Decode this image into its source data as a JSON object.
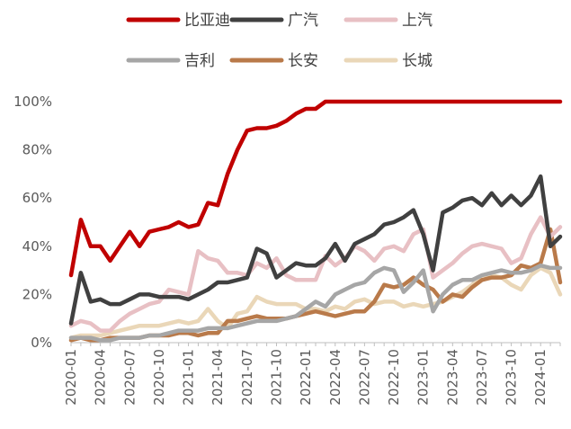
{
  "chart_data": {
    "type": "line",
    "title": "",
    "xlabel": "",
    "ylabel": "",
    "ylim": [
      0,
      100
    ],
    "y_ticks": [
      0,
      20,
      40,
      60,
      80,
      100
    ],
    "y_tick_labels": [
      "0%",
      "20%",
      "40%",
      "60%",
      "80%",
      "100%"
    ],
    "grid": false,
    "legend_position": "top",
    "x_tick_labels": [
      "2020-01",
      "2020-04",
      "2020-07",
      "2020-10",
      "2021-01",
      "2021-04",
      "2021-07",
      "2021-10",
      "2022-01",
      "2022-04",
      "2022-07",
      "2022-10",
      "2023-01",
      "2023-04",
      "2023-07",
      "2023-10",
      "2024-01"
    ],
    "x": [
      "2020-01",
      "2020-02",
      "2020-03",
      "2020-04",
      "2020-05",
      "2020-06",
      "2020-07",
      "2020-08",
      "2020-09",
      "2020-10",
      "2020-11",
      "2020-12",
      "2021-01",
      "2021-02",
      "2021-03",
      "2021-04",
      "2021-05",
      "2021-06",
      "2021-07",
      "2021-08",
      "2021-09",
      "2021-10",
      "2021-11",
      "2021-12",
      "2022-01",
      "2022-02",
      "2022-03",
      "2022-04",
      "2022-05",
      "2022-06",
      "2022-07",
      "2022-08",
      "2022-09",
      "2022-10",
      "2022-11",
      "2022-12",
      "2023-01",
      "2023-02",
      "2023-03",
      "2023-04",
      "2023-05",
      "2023-06",
      "2023-07",
      "2023-08",
      "2023-09",
      "2023-10",
      "2023-11",
      "2023-12",
      "2024-01",
      "2024-02",
      "2024-03"
    ],
    "series": [
      {
        "name": "比亚迪",
        "color": "#c00000",
        "values": [
          28,
          51,
          40,
          40,
          34,
          40,
          46,
          40,
          46,
          47,
          48,
          50,
          48,
          49,
          58,
          57,
          70,
          80,
          88,
          89,
          89,
          90,
          92,
          95,
          97,
          97,
          100,
          100,
          100,
          100,
          100,
          100,
          100,
          100,
          100,
          100,
          100,
          100,
          100,
          100,
          100,
          100,
          100,
          100,
          100,
          100,
          100,
          100,
          100,
          100,
          100
        ]
      },
      {
        "name": "广汽",
        "color": "#404040",
        "values": [
          8,
          29,
          17,
          18,
          16,
          16,
          18,
          20,
          20,
          19,
          19,
          19,
          18,
          20,
          22,
          25,
          25,
          26,
          27,
          39,
          37,
          27,
          30,
          33,
          32,
          32,
          35,
          41,
          34,
          41,
          43,
          45,
          49,
          50,
          52,
          55,
          45,
          30,
          54,
          56,
          59,
          60,
          57,
          62,
          57,
          61,
          57,
          61,
          69,
          40,
          44
        ]
      },
      {
        "name": "上汽",
        "color": "#e8c0c4",
        "values": [
          7,
          9,
          8,
          5,
          5,
          9,
          12,
          14,
          16,
          17,
          22,
          21,
          20,
          38,
          35,
          34,
          29,
          29,
          28,
          33,
          31,
          35,
          28,
          26,
          26,
          26,
          36,
          32,
          35,
          40,
          38,
          34,
          39,
          40,
          38,
          45,
          47,
          27,
          30,
          33,
          37,
          40,
          41,
          40,
          39,
          33,
          35,
          45,
          52,
          44,
          48
        ]
      },
      {
        "name": "吉利",
        "color": "#a6a6a6",
        "values": [
          2,
          2,
          2,
          1,
          1,
          2,
          2,
          2,
          3,
          3,
          4,
          5,
          5,
          5,
          6,
          6,
          6,
          7,
          8,
          9,
          9,
          9,
          10,
          11,
          14,
          17,
          15,
          20,
          22,
          24,
          25,
          29,
          31,
          30,
          21,
          25,
          30,
          13,
          20,
          24,
          26,
          26,
          28,
          29,
          30,
          29,
          29,
          30,
          32,
          31,
          31
        ]
      },
      {
        "name": "长安",
        "color": "#b97a4a",
        "values": [
          1,
          2,
          1,
          1,
          2,
          2,
          2,
          2,
          3,
          3,
          3,
          4,
          4,
          3,
          4,
          4,
          9,
          9,
          10,
          11,
          10,
          10,
          10,
          11,
          12,
          13,
          12,
          11,
          12,
          13,
          13,
          17,
          24,
          23,
          24,
          27,
          24,
          22,
          17,
          20,
          19,
          23,
          26,
          27,
          27,
          28,
          32,
          31,
          33,
          47,
          25
        ]
      },
      {
        "name": "长城",
        "color": "#ead7b8",
        "values": [
          2,
          3,
          3,
          3,
          4,
          5,
          6,
          7,
          7,
          7,
          8,
          9,
          8,
          9,
          14,
          9,
          6,
          12,
          13,
          19,
          17,
          16,
          16,
          16,
          14,
          14,
          13,
          15,
          14,
          17,
          18,
          16,
          17,
          17,
          15,
          16,
          15,
          16,
          17,
          19,
          21,
          24,
          28,
          28,
          27,
          24,
          22,
          28,
          31,
          29,
          20
        ]
      }
    ]
  }
}
